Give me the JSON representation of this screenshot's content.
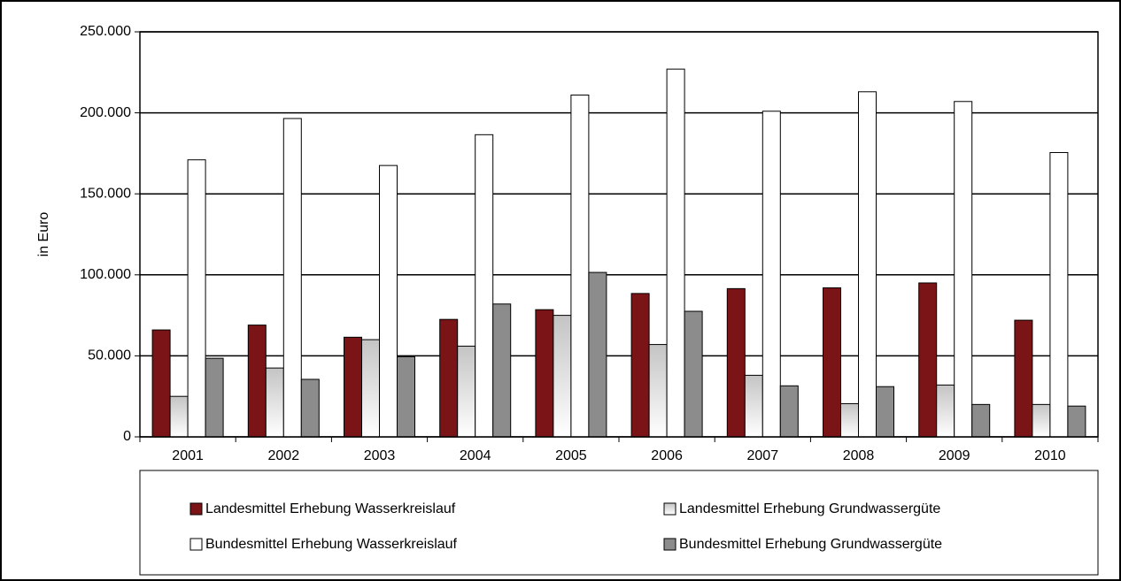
{
  "chart_data": {
    "type": "bar",
    "y_label": "in Euro",
    "categories": [
      "2001",
      "2002",
      "2003",
      "2004",
      "2005",
      "2006",
      "2007",
      "2008",
      "2009",
      "2010"
    ],
    "series": [
      {
        "name": "Landesmittel Erhebung Wasserkreislauf",
        "color": "#7b1416",
        "values": [
          66000,
          69000,
          61500,
          72500,
          78500,
          88500,
          91500,
          92000,
          95000,
          72000
        ]
      },
      {
        "name": "Landesmittel Erhebung Grundwassergüte",
        "color": "#c4c4c4",
        "gradient": true,
        "values": [
          25000,
          42500,
          60000,
          56000,
          75000,
          57000,
          38000,
          20500,
          32000,
          20000
        ]
      },
      {
        "name": "Bundesmittel Erhebung Wasserkreislauf",
        "color": "#ffffff",
        "values": [
          171000,
          196500,
          167500,
          186500,
          211000,
          227000,
          201000,
          213000,
          207000,
          175500
        ]
      },
      {
        "name": "Bundesmittel Erhebung Grundwassergüte",
        "color": "#8c8c8c",
        "values": [
          48500,
          35500,
          49500,
          82000,
          101500,
          77500,
          31500,
          31000,
          20000,
          19000
        ]
      }
    ],
    "ylim": [
      0,
      250000
    ],
    "yticks": [
      0,
      {
        "value": 50000,
        "label": "50.000"
      },
      {
        "value": 100000,
        "label": "100.000"
      },
      {
        "value": 150000,
        "label": "150.000"
      },
      {
        "value": 200000,
        "label": "200.000"
      },
      {
        "value": 250000,
        "label": "250.000"
      }
    ],
    "grid": true,
    "legend": "bottom"
  }
}
